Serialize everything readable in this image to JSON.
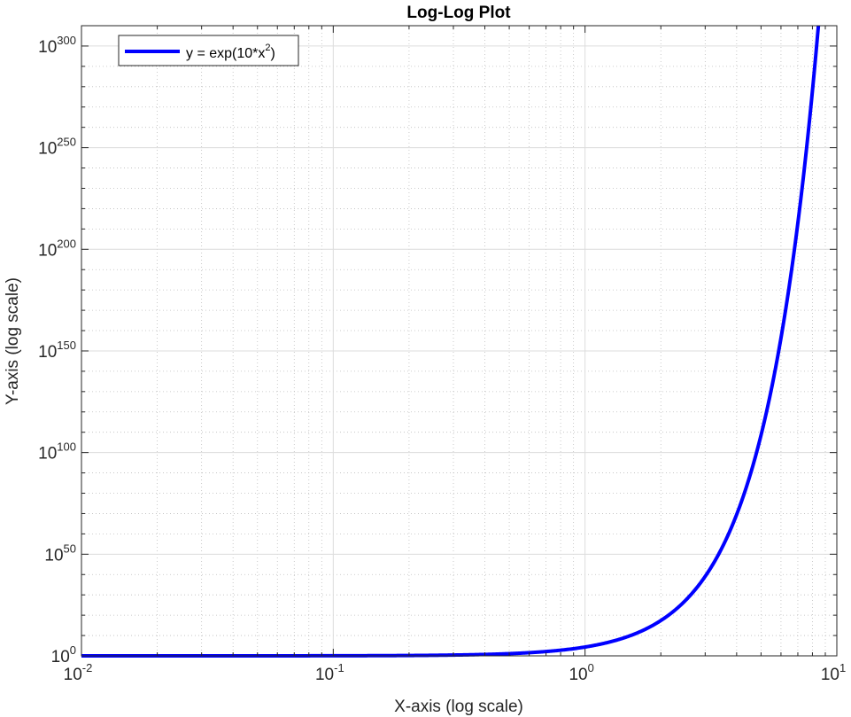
{
  "chart_data": {
    "type": "line",
    "title": "Log-Log Plot",
    "xlabel": "X-axis (log scale)",
    "ylabel": "Y-axis (log scale)",
    "xscale": "log",
    "yscale": "log",
    "xlim": [
      0.01,
      10
    ],
    "ylim_exponent": [
      0,
      310
    ],
    "x_ticks": [
      {
        "base": "10",
        "exp": "-2",
        "value": 0.01
      },
      {
        "base": "10",
        "exp": "-1",
        "value": 0.1
      },
      {
        "base": "10",
        "exp": "0",
        "value": 1
      },
      {
        "base": "10",
        "exp": "1",
        "value": 10
      }
    ],
    "y_ticks": [
      {
        "base": "10",
        "exp": "0",
        "exponent_value": 0
      },
      {
        "base": "10",
        "exp": "50",
        "exponent_value": 50
      },
      {
        "base": "10",
        "exp": "100",
        "exponent_value": 100
      },
      {
        "base": "10",
        "exp": "150",
        "exponent_value": 150
      },
      {
        "base": "10",
        "exp": "200",
        "exponent_value": 200
      },
      {
        "base": "10",
        "exp": "250",
        "exponent_value": 250
      },
      {
        "base": "10",
        "exp": "300",
        "exponent_value": 300
      }
    ],
    "grid": true,
    "minor_grid": true,
    "legend_position": "top-left",
    "series": [
      {
        "label_main": "y = exp(10*x",
        "label_sup": "2",
        "label_close": ")",
        "color": "#0000ff",
        "function": "exp(10*x^2)"
      }
    ]
  }
}
